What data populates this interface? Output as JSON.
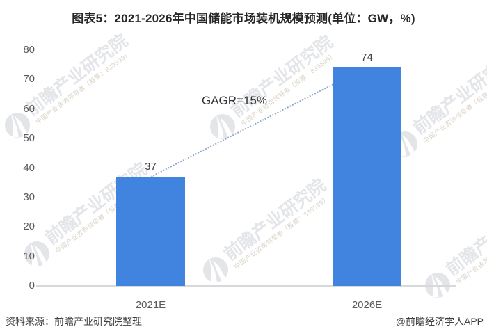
{
  "title": "图表5：2021-2026年中国储能市场装机规模预测(单位：GW，%)",
  "chart_data": {
    "type": "bar",
    "title": "图表5：2021-2026年中国储能市场装机规模预测(单位：GW，%)",
    "categories": [
      "2021E",
      "2026E"
    ],
    "values": [
      37,
      74
    ],
    "unit": "GW",
    "annotation": "GAGR=15%",
    "yticks": [
      0,
      10,
      20,
      30,
      40,
      50,
      60,
      70,
      80
    ],
    "ylim": [
      0,
      80
    ],
    "xlabel": "",
    "ylabel": "",
    "grid": false,
    "legend": "none",
    "bar_color": "#4184df",
    "trend_line_color": "#8fa9cb"
  },
  "footer": {
    "source": "资料来源：前瞻产业研究院整理",
    "credit": "@前瞻经济学人APP"
  },
  "watermark": {
    "logo_icon": "qianzhan-logo",
    "brand": "前瞻产业研究院",
    "tagline": "中国产业咨询领导者（股票：839599）"
  },
  "colors": {
    "bar": "#4184df",
    "trend_line": "#8fa9cb",
    "axis_line": "#d9d9d9",
    "tick_text": "#595959",
    "value_text": "#404040",
    "title_text": "#262626",
    "watermark_text": "#e3e5e9",
    "watermark_tagline": "#dad2c6"
  }
}
